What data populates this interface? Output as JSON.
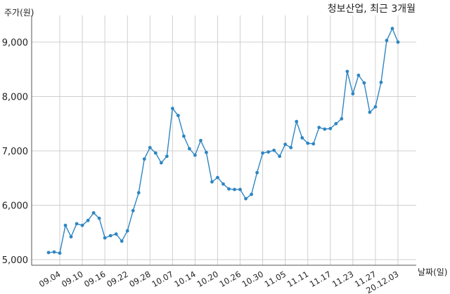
{
  "chart_data": {
    "type": "line",
    "title": "청보산업, 최근 3개월",
    "ylabel": "주가(원)",
    "xlabel": "날짜(일)",
    "ylim": [
      4950,
      9500
    ],
    "yticks": [
      5000,
      6000,
      7000,
      8000,
      9000
    ],
    "ytick_labels": [
      "5,000",
      "6,000",
      "7,000",
      "8,000",
      "9,000"
    ],
    "grid": true,
    "x_tick_labels": [
      "09.04",
      "09.10",
      "09.16",
      "09.22",
      "09.28",
      "10.07",
      "10.14",
      "10.20",
      "10.26",
      "10.30",
      "11.05",
      "11.11",
      "11.17",
      "11.23",
      "11.27",
      "20.12.03"
    ],
    "x_tick_positions": [
      2,
      6,
      10,
      14,
      18,
      22,
      26,
      30,
      34,
      38,
      42,
      46,
      50,
      54,
      58,
      62
    ],
    "series": [
      {
        "color": "#2e86c1",
        "values": [
          5130,
          5140,
          5120,
          5630,
          5420,
          5660,
          5630,
          5720,
          5860,
          5760,
          5400,
          5440,
          5470,
          5340,
          5530,
          5900,
          6230,
          6850,
          7060,
          6960,
          6780,
          6900,
          7780,
          7650,
          7270,
          7040,
          6920,
          7190,
          6970,
          6430,
          6510,
          6390,
          6300,
          6290,
          6290,
          6120,
          6200,
          6600,
          6960,
          6980,
          7010,
          6900,
          7120,
          7060,
          7540,
          7240,
          7140,
          7130,
          7430,
          7400,
          7410,
          7500,
          7590,
          8460,
          8050,
          8390,
          8250,
          7710,
          7810,
          8260,
          9030,
          9250,
          9000
        ]
      }
    ]
  }
}
